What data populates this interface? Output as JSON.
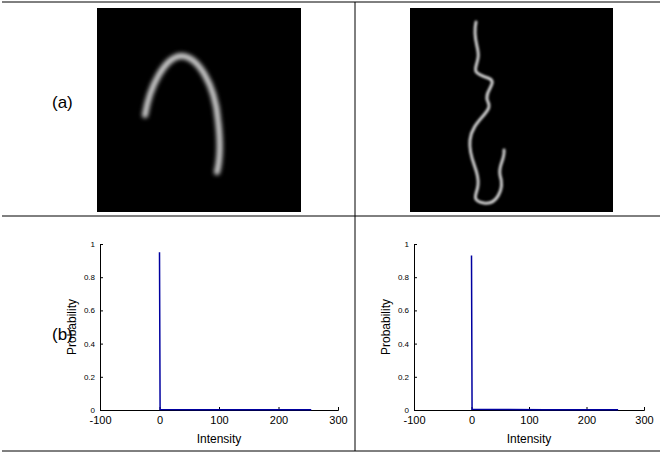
{
  "panel_labels": [
    "(a)",
    "(b)"
  ],
  "chart_data": [
    {
      "type": "line",
      "x": [
        0,
        1,
        64,
        128,
        192,
        255
      ],
      "values": [
        0.95,
        0.003,
        0.002,
        0.002,
        0.001,
        0.001
      ],
      "color": "#0000a0",
      "xlim": [
        -100,
        300
      ],
      "ylim": [
        0,
        1
      ],
      "xticks": [
        -100,
        0,
        100,
        200,
        300
      ],
      "yticks": [
        0,
        0.2,
        0.4,
        0.6,
        0.8,
        1
      ],
      "x_label": "Intensity",
      "y_label": "Probability"
    },
    {
      "type": "line",
      "x": [
        0,
        1,
        64,
        128,
        192,
        255
      ],
      "values": [
        0.93,
        0.004,
        0.003,
        0.002,
        0.002,
        0.001
      ],
      "color": "#0000a0",
      "xlim": [
        -100,
        300
      ],
      "ylim": [
        0,
        1
      ],
      "xticks": [
        -100,
        0,
        100,
        200,
        300
      ],
      "yticks": [
        0,
        0.2,
        0.4,
        0.6,
        0.8,
        1
      ],
      "x_label": "Intensity",
      "y_label": "Probability"
    }
  ]
}
